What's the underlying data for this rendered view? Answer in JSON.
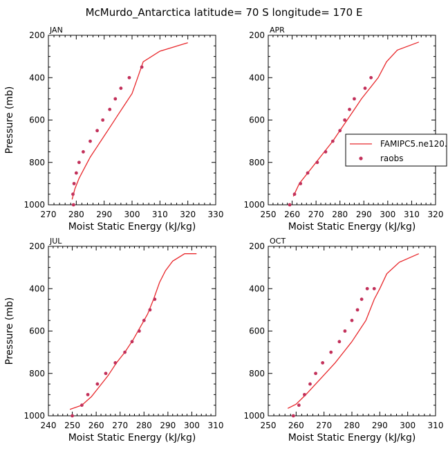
{
  "figure": {
    "title": "McMurdo_Antarctica  latitude= 70 S longitude= 170 E",
    "colors": {
      "model": "#e8262a",
      "obs": "#c2305a",
      "axis": "#000000"
    }
  },
  "legend": {
    "placement": "right of APR panel",
    "entries": [
      {
        "label": "FAMIPC5.ne120.:",
        "style": "line"
      },
      {
        "label": "raobs",
        "style": "marker"
      }
    ]
  },
  "chart_data": [
    {
      "type": "line",
      "panel_label": "JAN",
      "xlabel": "Moist Static Energy (kJ/kg)",
      "ylabel": "Pressure (mb)",
      "xlim": [
        270,
        330
      ],
      "xticks": [
        270,
        280,
        290,
        300,
        310,
        320,
        330
      ],
      "ylim": [
        1000,
        200
      ],
      "yticks": [
        200,
        400,
        600,
        800,
        1000
      ],
      "series": [
        {
          "name": "FAMIPC5.ne120.:",
          "style": "line",
          "x": [
            278.5,
            279.5,
            281,
            283,
            285,
            287.5,
            290,
            292.5,
            295,
            297.5,
            300,
            302,
            304,
            310,
            320
          ],
          "y": [
            975,
            925,
            875,
            825,
            775,
            725,
            675,
            625,
            575,
            525,
            475,
            400,
            325,
            275,
            235
          ]
        },
        {
          "name": "raobs",
          "style": "marker",
          "x": [
            279,
            278.8,
            279.2,
            280,
            281,
            282.5,
            285,
            287.5,
            289.5,
            292,
            294,
            296,
            299,
            303.5
          ],
          "y": [
            1000,
            950,
            900,
            850,
            800,
            750,
            700,
            650,
            600,
            550,
            500,
            450,
            400,
            350
          ]
        }
      ]
    },
    {
      "type": "line",
      "panel_label": "APR",
      "xlabel": "Moist Static Energy (kJ/kg)",
      "ylabel": "",
      "xlim": [
        250,
        320
      ],
      "xticks": [
        250,
        260,
        270,
        280,
        290,
        300,
        310,
        320
      ],
      "ylim": [
        1000,
        200
      ],
      "yticks": [
        200,
        400,
        600,
        800,
        1000
      ],
      "series": [
        {
          "name": "FAMIPC5.ne120.:",
          "style": "line",
          "x": [
            260.5,
            263,
            266.5,
            270,
            273.5,
            277,
            280,
            283,
            286,
            289,
            292.5,
            296,
            299.5,
            304,
            313
          ],
          "y": [
            960,
            900,
            850,
            800,
            750,
            700,
            650,
            600,
            550,
            500,
            450,
            400,
            325,
            270,
            232
          ]
        },
        {
          "name": "raobs",
          "style": "marker",
          "x": [
            259,
            261,
            263.5,
            266.5,
            270.5,
            274,
            277,
            280,
            282,
            284,
            286,
            290.5,
            293
          ],
          "y": [
            1000,
            950,
            900,
            850,
            800,
            750,
            700,
            650,
            600,
            550,
            500,
            450,
            400
          ]
        }
      ]
    },
    {
      "type": "line",
      "panel_label": "JUL",
      "xlabel": "Moist Static Energy (kJ/kg)",
      "ylabel": "Pressure (mb)",
      "xlim": [
        240,
        310
      ],
      "xticks": [
        240,
        250,
        260,
        270,
        280,
        290,
        300,
        310
      ],
      "ylim": [
        1000,
        200
      ],
      "yticks": [
        200,
        400,
        600,
        800,
        1000
      ],
      "series": [
        {
          "name": "FAMIPC5.ne120.:",
          "style": "line",
          "x": [
            249,
            254,
            258,
            261.5,
            265,
            268.5,
            272,
            275.5,
            278.5,
            281.5,
            284,
            286.5,
            289,
            292,
            297,
            302
          ],
          "y": [
            970,
            950,
            910,
            860,
            810,
            750,
            700,
            640,
            580,
            520,
            450,
            370,
            315,
            270,
            235,
            235
          ]
        },
        {
          "name": "raobs",
          "style": "marker",
          "x": [
            250,
            254,
            256.5,
            260.5,
            264,
            268,
            272,
            275,
            278,
            280,
            282.5,
            284.5
          ],
          "y": [
            1000,
            950,
            900,
            850,
            800,
            750,
            700,
            650,
            600,
            550,
            500,
            450
          ]
        }
      ]
    },
    {
      "type": "line",
      "panel_label": "OCT",
      "xlabel": "Moist Static Energy (kJ/kg)",
      "ylabel": "",
      "xlim": [
        250,
        310
      ],
      "xticks": [
        250,
        260,
        270,
        280,
        290,
        300,
        310
      ],
      "ylim": [
        1000,
        200
      ],
      "yticks": [
        200,
        400,
        600,
        800,
        1000
      ],
      "series": [
        {
          "name": "FAMIPC5.ne120.:",
          "style": "line",
          "x": [
            257,
            260,
            263.5,
            267,
            270.5,
            274,
            277,
            280,
            282.5,
            285,
            288,
            290,
            292.5,
            297,
            304
          ],
          "y": [
            965,
            945,
            900,
            850,
            800,
            750,
            700,
            650,
            600,
            550,
            450,
            400,
            330,
            275,
            235
          ]
        },
        {
          "name": "raobs",
          "style": "marker",
          "x": [
            259,
            261,
            263,
            265,
            267,
            269.5,
            272.5,
            275.5,
            277.5,
            280,
            282,
            283.5,
            285.5,
            288
          ],
          "y": [
            1000,
            950,
            900,
            850,
            800,
            750,
            700,
            650,
            600,
            550,
            500,
            450,
            400,
            400
          ]
        }
      ]
    }
  ]
}
